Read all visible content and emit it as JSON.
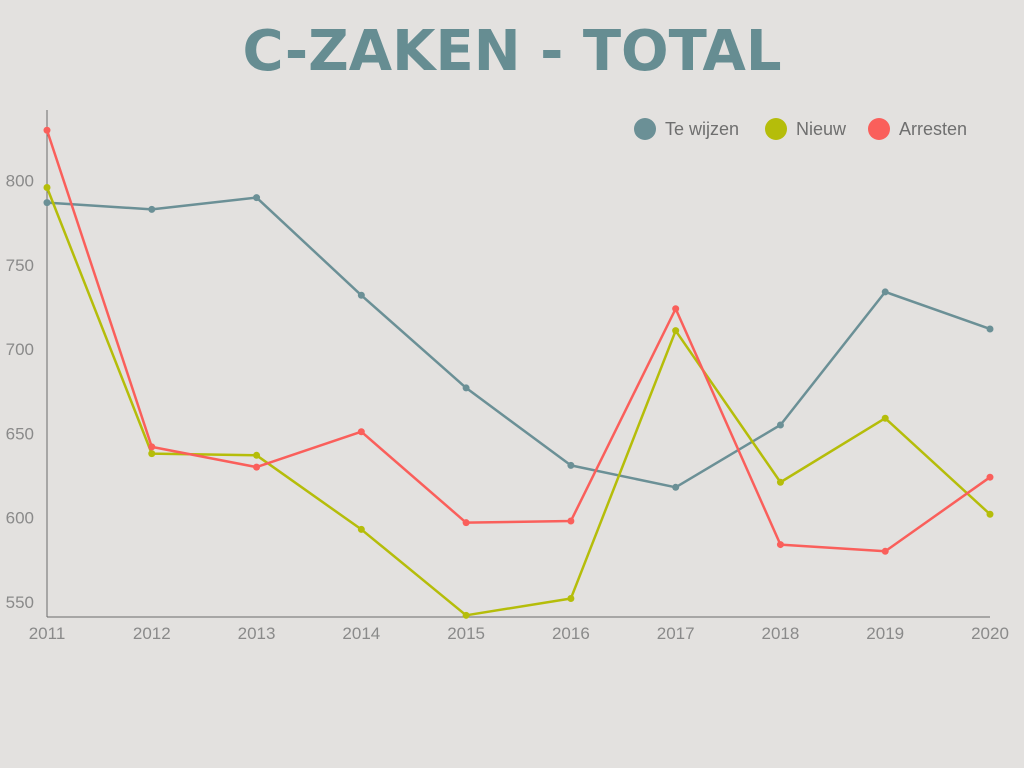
{
  "chart_data": {
    "type": "line",
    "title": "C-ZAKEN - TOTAL",
    "xlabel": "",
    "ylabel": "",
    "x": [
      "2011",
      "2012",
      "2013",
      "2014",
      "2015",
      "2016",
      "2017",
      "2018",
      "2019",
      "2020"
    ],
    "yticks": [
      550,
      600,
      650,
      700,
      750,
      800
    ],
    "ylim": [
      541,
      842
    ],
    "grid": false,
    "legend_position": "top-right",
    "series": [
      {
        "name": "Te wijzen",
        "color": "#6b9096",
        "values": [
          787,
          783,
          790,
          732,
          677,
          631,
          618,
          655,
          734,
          712
        ]
      },
      {
        "name": "Nieuw",
        "color": "#b5bd0a",
        "values": [
          796,
          638,
          637,
          593,
          542,
          552,
          711,
          621,
          659,
          602
        ]
      },
      {
        "name": "Arresten",
        "color": "#fa5f5b",
        "values": [
          830,
          642,
          630,
          651,
          597,
          598,
          724,
          584,
          580,
          624
        ]
      }
    ]
  },
  "colors": {
    "title": "#668d92",
    "axis": "#6b6b6b",
    "tick_text": "#8a8a8a",
    "legend_text": "#6f6f6f"
  }
}
